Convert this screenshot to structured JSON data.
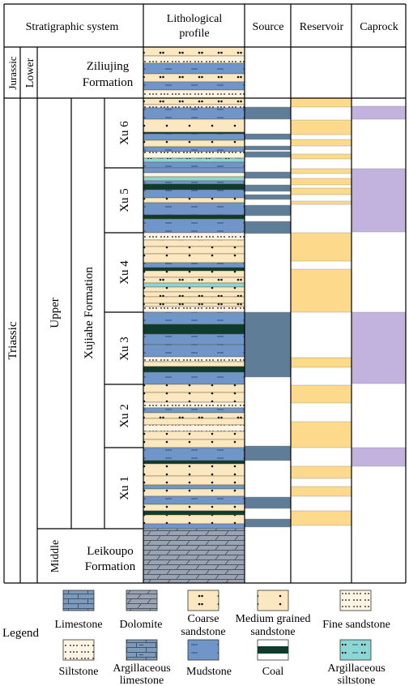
{
  "header": {
    "stratigraphic_system": "Stratigraphic system",
    "lithological_profile_line1": "Lithological",
    "lithological_profile_line2": "profile",
    "source": "Source",
    "reservoir": "Reservoir",
    "caprock": "Caprock"
  },
  "strata": {
    "system_jurassic": "Jurassic",
    "system_triassic": "Triassic",
    "series_lower": "Lower",
    "series_upper": "Upper",
    "series_middle": "Middle",
    "formation_ziliujing_line1": "Ziliujing",
    "formation_ziliujing_line2": "Formation",
    "formation_xujiahe": "Xujiahe Formation",
    "formation_leikoupo_line1": "Leikoupo",
    "formation_leikoupo_line2": "Formation",
    "members": [
      "Xu 6",
      "Xu 5",
      "Xu 4",
      "Xu 3",
      "Xu 2",
      "Xu 1"
    ]
  },
  "legend": {
    "title": "Legend",
    "items": [
      {
        "key": "limestone",
        "line1": "Limestone",
        "line2": ""
      },
      {
        "key": "dolomite",
        "line1": "Dolomite",
        "line2": ""
      },
      {
        "key": "coarse",
        "line1": "Coarse",
        "line2": "sandstone"
      },
      {
        "key": "medium",
        "line1": "Medium grained",
        "line2": "sandstone"
      },
      {
        "key": "fine",
        "line1": "Fine sandstone",
        "line2": ""
      },
      {
        "key": "siltstone",
        "line1": "Siltstone",
        "line2": ""
      },
      {
        "key": "arglime",
        "line1": "Argillaceous",
        "line2": "limestone"
      },
      {
        "key": "mudstone",
        "line1": "Mudstone",
        "line2": ""
      },
      {
        "key": "coal",
        "line1": "Coal",
        "line2": ""
      },
      {
        "key": "argsilt",
        "line1": "Argillaceous",
        "line2": "siltstone"
      }
    ]
  },
  "colors": {
    "sand": "#fbe8c0",
    "mud": "#6f95c9",
    "coal": "#0d3b2c",
    "argsilt": "#8dd6d6",
    "silt": "#fdf3e2",
    "lime": "#7f9ab8",
    "dolomite": "#9aa3b1",
    "source": "#5f7d96",
    "reservoir": "#fcd98b",
    "caprock": "#c2b3de"
  }
}
